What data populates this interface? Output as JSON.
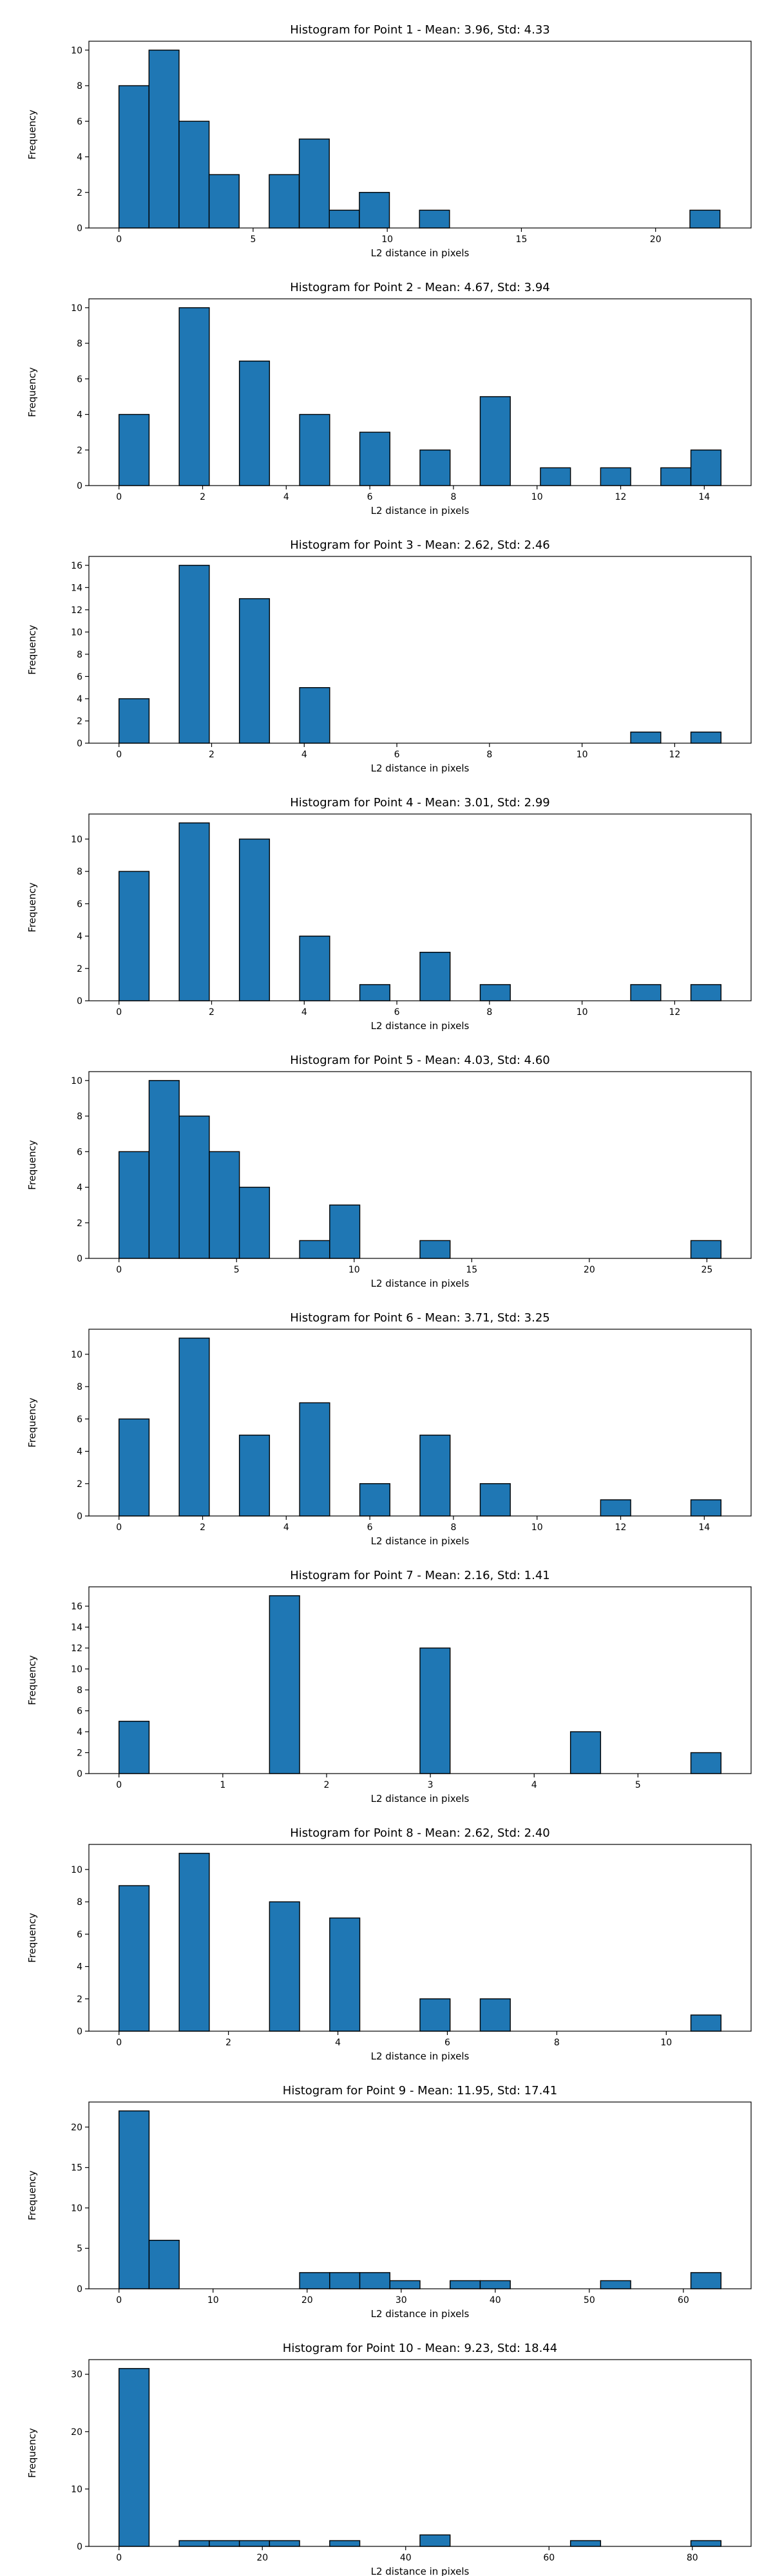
{
  "colors": {
    "bar_fill": "#1f77b4",
    "bar_edge": "#000000",
    "axis": "#000000",
    "background": "#ffffff"
  },
  "chart_data": [
    {
      "type": "bar",
      "title": "Histogram for Point 1 - Mean: 3.96, Std: 4.33",
      "xlabel": "L2 distance in pixels",
      "ylabel": "Frequency",
      "xlim": [
        -1.12,
        23.56
      ],
      "ylim": [
        0,
        10.5
      ],
      "xticks": [
        0,
        5,
        10,
        15,
        20
      ],
      "yticks": [
        0,
        2,
        4,
        6,
        8,
        10
      ],
      "bin_edges": [
        0,
        1.12,
        2.24,
        3.36,
        4.48,
        5.6,
        6.72,
        7.84,
        8.96,
        10.08,
        11.2,
        12.32,
        13.44,
        14.56,
        15.68,
        16.8,
        17.92,
        19.04,
        20.16,
        21.28,
        22.4
      ],
      "values": [
        8,
        10,
        6,
        3,
        0,
        3,
        5,
        1,
        2,
        0,
        1,
        0,
        0,
        0,
        0,
        0,
        0,
        0,
        0,
        1
      ],
      "grid": false
    },
    {
      "type": "bar",
      "title": "Histogram for Point 2 - Mean: 4.67, Std: 3.94",
      "xlabel": "L2 distance in pixels",
      "ylabel": "Frequency",
      "xlim": [
        -0.72,
        15.12
      ],
      "ylim": [
        0,
        10.5
      ],
      "xticks": [
        0,
        2,
        4,
        6,
        8,
        10,
        12,
        14
      ],
      "yticks": [
        0,
        2,
        4,
        6,
        8,
        10
      ],
      "bin_edges": [
        0,
        0.72,
        1.44,
        2.16,
        2.88,
        3.6,
        4.32,
        5.04,
        5.76,
        6.48,
        7.2,
        7.92,
        8.64,
        9.36,
        10.08,
        10.8,
        11.52,
        12.24,
        12.96,
        13.68,
        14.4
      ],
      "values": [
        4,
        0,
        10,
        0,
        7,
        0,
        4,
        0,
        3,
        0,
        2,
        0,
        5,
        0,
        1,
        0,
        1,
        0,
        1,
        2
      ],
      "grid": false
    },
    {
      "type": "bar",
      "title": "Histogram for Point 3 - Mean: 2.62, Std: 2.46",
      "xlabel": "L2 distance in pixels",
      "ylabel": "Frequency",
      "xlim": [
        -0.65,
        13.65
      ],
      "ylim": [
        0,
        16.8
      ],
      "xticks": [
        0,
        2,
        4,
        6,
        8,
        10,
        12
      ],
      "yticks": [
        0,
        2,
        4,
        6,
        8,
        10,
        12,
        14,
        16
      ],
      "bin_edges": [
        0,
        0.65,
        1.3,
        1.95,
        2.6,
        3.25,
        3.9,
        4.55,
        5.2,
        5.85,
        6.5,
        7.15,
        7.8,
        8.45,
        9.1,
        9.75,
        10.4,
        11.05,
        11.7,
        12.35,
        13.0
      ],
      "values": [
        4,
        0,
        16,
        0,
        13,
        0,
        5,
        0,
        0,
        0,
        0,
        0,
        0,
        0,
        0,
        0,
        0,
        1,
        0,
        1
      ],
      "grid": false
    },
    {
      "type": "bar",
      "title": "Histogram for Point 4 - Mean: 3.01, Std: 2.99",
      "xlabel": "L2 distance in pixels",
      "ylabel": "Frequency",
      "xlim": [
        -0.65,
        13.65
      ],
      "ylim": [
        0,
        11.55
      ],
      "xticks": [
        0,
        2,
        4,
        6,
        8,
        10,
        12
      ],
      "yticks": [
        0,
        2,
        4,
        6,
        8,
        10
      ],
      "bin_edges": [
        0,
        0.65,
        1.3,
        1.95,
        2.6,
        3.25,
        3.9,
        4.55,
        5.2,
        5.85,
        6.5,
        7.15,
        7.8,
        8.45,
        9.1,
        9.75,
        10.4,
        11.05,
        11.7,
        12.35,
        13.0
      ],
      "values": [
        8,
        0,
        11,
        0,
        10,
        0,
        4,
        0,
        1,
        0,
        3,
        0,
        1,
        0,
        0,
        0,
        0,
        1,
        0,
        1
      ],
      "grid": false
    },
    {
      "type": "bar",
      "title": "Histogram for Point 5 - Mean: 4.03, Std: 4.60",
      "xlabel": "L2 distance in pixels",
      "ylabel": "Frequency",
      "xlim": [
        -1.28,
        26.88
      ],
      "ylim": [
        0,
        10.5
      ],
      "xticks": [
        0,
        5,
        10,
        15,
        20,
        25
      ],
      "yticks": [
        0,
        2,
        4,
        6,
        8,
        10
      ],
      "bin_edges": [
        0,
        1.28,
        2.56,
        3.84,
        5.12,
        6.4,
        7.68,
        8.96,
        10.24,
        11.52,
        12.8,
        14.08,
        15.36,
        16.64,
        17.92,
        19.2,
        20.48,
        21.76,
        23.04,
        24.32,
        25.6
      ],
      "values": [
        6,
        10,
        8,
        6,
        4,
        0,
        1,
        3,
        0,
        0,
        1,
        0,
        0,
        0,
        0,
        0,
        0,
        0,
        0,
        1
      ],
      "grid": false
    },
    {
      "type": "bar",
      "title": "Histogram for Point 6 - Mean: 3.71, Std: 3.25",
      "xlabel": "L2 distance in pixels",
      "ylabel": "Frequency",
      "xlim": [
        -0.72,
        15.12
      ],
      "ylim": [
        0,
        11.55
      ],
      "xticks": [
        0,
        2,
        4,
        6,
        8,
        10,
        12,
        14
      ],
      "yticks": [
        0,
        2,
        4,
        6,
        8,
        10
      ],
      "bin_edges": [
        0,
        0.72,
        1.44,
        2.16,
        2.88,
        3.6,
        4.32,
        5.04,
        5.76,
        6.48,
        7.2,
        7.92,
        8.64,
        9.36,
        10.08,
        10.8,
        11.52,
        12.24,
        12.96,
        13.68,
        14.4
      ],
      "values": [
        6,
        0,
        11,
        0,
        5,
        0,
        7,
        0,
        2,
        0,
        5,
        0,
        2,
        0,
        0,
        0,
        1,
        0,
        0,
        1
      ],
      "grid": false
    },
    {
      "type": "bar",
      "title": "Histogram for Point 7 - Mean: 2.16, Std: 1.41",
      "xlabel": "L2 distance in pixels",
      "ylabel": "Frequency",
      "xlim": [
        -0.29,
        6.09
      ],
      "ylim": [
        0,
        17.85
      ],
      "xticks": [
        0,
        1,
        2,
        3,
        4,
        5
      ],
      "yticks": [
        0,
        2,
        4,
        6,
        8,
        10,
        12,
        14,
        16
      ],
      "bin_edges": [
        0,
        0.29,
        0.58,
        0.87,
        1.16,
        1.45,
        1.74,
        2.03,
        2.32,
        2.61,
        2.9,
        3.19,
        3.48,
        3.77,
        4.06,
        4.35,
        4.64,
        4.93,
        5.22,
        5.51,
        5.8
      ],
      "values": [
        5,
        0,
        0,
        0,
        0,
        17,
        0,
        0,
        0,
        0,
        12,
        0,
        0,
        0,
        0,
        4,
        0,
        0,
        0,
        2
      ],
      "grid": false
    },
    {
      "type": "bar",
      "title": "Histogram for Point 8 - Mean: 2.62, Std: 2.40",
      "xlabel": "L2 distance in pixels",
      "ylabel": "Frequency",
      "xlim": [
        -0.55,
        11.55
      ],
      "ylim": [
        0,
        11.55
      ],
      "xticks": [
        0,
        2,
        4,
        6,
        8,
        10
      ],
      "yticks": [
        0,
        2,
        4,
        6,
        8,
        10
      ],
      "bin_edges": [
        0,
        0.55,
        1.1,
        1.65,
        2.2,
        2.75,
        3.3,
        3.85,
        4.4,
        4.95,
        5.5,
        6.05,
        6.6,
        7.15,
        7.7,
        8.25,
        8.8,
        9.35,
        9.9,
        10.45,
        11.0
      ],
      "values": [
        9,
        0,
        11,
        0,
        0,
        8,
        0,
        7,
        0,
        0,
        2,
        0,
        2,
        0,
        0,
        0,
        0,
        0,
        0,
        1
      ],
      "grid": false
    },
    {
      "type": "bar",
      "title": "Histogram for Point 9 - Mean: 11.95, Std: 17.41",
      "xlabel": "L2 distance in pixels",
      "ylabel": "Frequency",
      "xlim": [
        -3.2,
        67.2
      ],
      "ylim": [
        0,
        23.1
      ],
      "xticks": [
        0,
        10,
        20,
        30,
        40,
        50,
        60
      ],
      "yticks": [
        0,
        5,
        10,
        15,
        20
      ],
      "bin_edges": [
        0,
        3.2,
        6.4,
        9.6,
        12.8,
        16.0,
        19.2,
        22.4,
        25.6,
        28.8,
        32.0,
        35.2,
        38.4,
        41.6,
        44.8,
        48.0,
        51.2,
        54.4,
        57.6,
        60.8,
        64.0
      ],
      "values": [
        22,
        6,
        0,
        0,
        0,
        0,
        2,
        2,
        2,
        1,
        0,
        1,
        1,
        0,
        0,
        0,
        1,
        0,
        0,
        2
      ],
      "grid": false
    },
    {
      "type": "bar",
      "title": "Histogram for Point 10 - Mean: 9.23, Std: 18.44",
      "xlabel": "L2 distance in pixels",
      "ylabel": "Frequency",
      "xlim": [
        -4.2,
        88.2
      ],
      "ylim": [
        0,
        32.55
      ],
      "xticks": [
        0,
        20,
        40,
        60,
        80
      ],
      "yticks": [
        0,
        10,
        20,
        30
      ],
      "bin_edges": [
        0,
        4.2,
        8.4,
        12.6,
        16.8,
        21.0,
        25.2,
        29.4,
        33.6,
        37.8,
        42.0,
        46.2,
        50.4,
        54.6,
        58.8,
        63.0,
        67.2,
        71.4,
        75.6,
        79.8,
        84.0
      ],
      "values": [
        31,
        0,
        1,
        1,
        1,
        1,
        0,
        1,
        0,
        0,
        2,
        0,
        0,
        0,
        0,
        1,
        0,
        0,
        0,
        1
      ],
      "grid": false
    }
  ]
}
